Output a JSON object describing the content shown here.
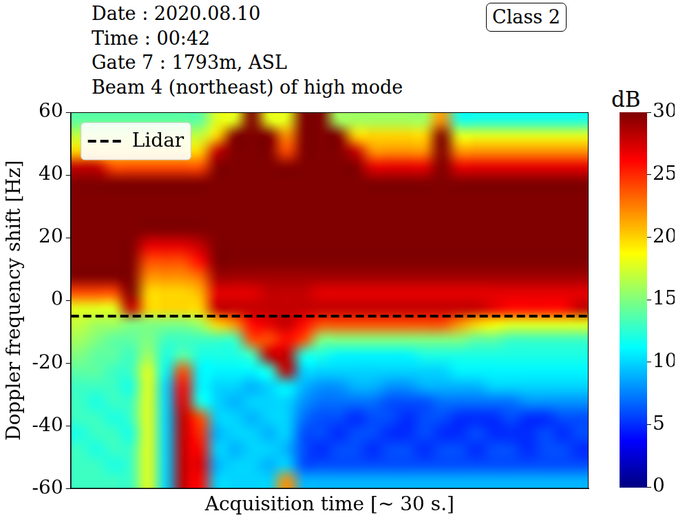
{
  "chart_data": {
    "type": "heatmap",
    "title_lines": [
      "Date : 2020.08.10",
      "Time : 00:42",
      "Gate 7 : 1793m, ASL",
      "Beam 4 (northeast) of high mode"
    ],
    "badge": "Class 2",
    "x_label": "Acquisition time [~ 30 s.]",
    "y_label": "Doppler frequency shift [Hz]",
    "xlim": [
      0,
      30
    ],
    "ylim": [
      -60,
      60
    ],
    "yticks": [
      -60,
      -40,
      -20,
      0,
      20,
      40,
      60
    ],
    "tick_labels": "y",
    "grid": false,
    "legend": "upper left",
    "x_edges": [
      0,
      1,
      2,
      3,
      4,
      5,
      6,
      7,
      8,
      9,
      10,
      11,
      12,
      13,
      14,
      15,
      16,
      17,
      18,
      19,
      20,
      21,
      22,
      23,
      24,
      25,
      26,
      27,
      28,
      29,
      30
    ],
    "y_edges": [
      -60,
      -55,
      -50,
      -45,
      -40,
      -35,
      -30,
      -25,
      -20,
      -15,
      -10,
      -5,
      0,
      5,
      10,
      15,
      20,
      25,
      30,
      35,
      40,
      45,
      50,
      55,
      60
    ],
    "cells": [
      [
        13,
        13,
        13,
        13,
        18,
        10,
        28,
        26,
        10,
        10,
        10,
        10,
        22,
        9,
        9,
        9,
        9,
        9,
        9,
        9,
        9,
        9,
        9,
        9,
        9,
        9,
        9,
        9,
        9,
        9
      ],
      [
        13,
        13,
        12,
        13,
        18,
        10,
        28,
        27,
        9,
        10,
        10,
        9,
        10,
        6,
        6,
        6,
        6,
        6,
        6,
        6,
        6,
        6,
        6,
        6,
        6,
        6,
        6,
        6,
        6,
        6
      ],
      [
        13,
        12,
        13,
        13,
        18,
        10,
        28,
        26,
        10,
        9,
        10,
        10,
        9,
        6,
        5,
        6,
        6,
        5,
        6,
        6,
        5,
        6,
        6,
        5,
        6,
        6,
        5,
        6,
        6,
        5
      ],
      [
        12,
        13,
        13,
        12,
        18,
        10,
        28,
        25,
        9,
        10,
        10,
        9,
        10,
        6,
        6,
        5,
        6,
        6,
        5,
        5,
        6,
        5,
        5,
        6,
        5,
        5,
        5,
        6,
        5,
        6
      ],
      [
        13,
        13,
        12,
        13,
        18,
        10,
        28,
        24,
        10,
        10,
        9,
        10,
        10,
        7,
        6,
        6,
        5,
        6,
        6,
        5,
        6,
        6,
        5,
        5,
        5,
        6,
        5,
        5,
        6,
        6
      ],
      [
        13,
        12,
        13,
        13,
        18,
        10,
        27,
        12,
        10,
        9,
        10,
        10,
        10,
        8,
        7,
        7,
        7,
        7,
        6,
        6,
        6,
        7,
        7,
        7,
        7,
        7,
        8,
        8,
        8,
        8
      ],
      [
        13,
        13,
        13,
        12,
        18,
        10,
        26,
        11,
        10,
        10,
        9,
        10,
        11,
        9,
        8,
        8,
        9,
        9,
        8,
        8,
        9,
        9,
        9,
        9,
        10,
        10,
        10,
        10,
        10,
        10
      ],
      [
        14,
        14,
        13,
        13,
        18,
        11,
        24,
        11,
        11,
        11,
        11,
        12,
        28,
        10,
        10,
        10,
        10,
        10,
        10,
        10,
        10,
        10,
        11,
        11,
        11,
        11,
        11,
        11,
        11,
        11
      ],
      [
        15,
        14,
        14,
        13,
        16,
        12,
        14,
        12,
        12,
        12,
        13,
        28,
        28,
        12,
        12,
        11,
        11,
        11,
        11,
        11,
        12,
        12,
        12,
        12,
        12,
        12,
        12,
        12,
        12,
        12
      ],
      [
        16,
        15,
        14,
        14,
        15,
        13,
        13,
        13,
        13,
        13,
        24,
        24,
        26,
        24,
        15,
        15,
        15,
        15,
        15,
        15,
        15,
        15,
        15,
        14,
        14,
        13,
        13,
        13,
        13,
        13
      ],
      [
        17,
        16,
        16,
        15,
        15,
        15,
        15,
        16,
        20,
        22,
        26,
        27,
        28,
        26,
        24,
        24,
        24,
        24,
        24,
        24,
        24,
        24,
        22,
        20,
        19,
        18,
        18,
        18,
        18,
        18
      ],
      [
        18,
        18,
        18,
        28,
        20,
        20,
        20,
        20,
        28,
        28,
        28,
        28,
        28,
        28,
        28,
        28,
        28,
        28,
        28,
        28,
        28,
        28,
        28,
        28,
        27,
        26,
        26,
        26,
        26,
        28
      ],
      [
        24,
        24,
        24,
        30,
        20,
        20,
        20,
        21,
        27,
        27,
        27,
        28,
        28,
        28,
        27,
        27,
        27,
        27,
        27,
        27,
        27,
        27,
        27,
        27,
        27,
        27,
        27,
        27,
        27,
        27
      ],
      [
        30,
        30,
        30,
        30,
        22,
        22,
        22,
        23,
        29,
        29,
        29,
        29,
        29,
        29,
        29,
        29,
        29,
        29,
        29,
        29,
        29,
        29,
        29,
        29,
        29,
        29,
        29,
        29,
        29,
        29
      ],
      [
        30,
        30,
        30,
        30,
        24,
        24,
        24,
        26,
        30,
        30,
        30,
        30,
        30,
        30,
        30,
        30,
        30,
        30,
        30,
        30,
        30,
        30,
        30,
        30,
        30,
        30,
        30,
        30,
        30,
        30
      ],
      [
        30,
        30,
        30,
        30,
        27,
        27,
        27,
        28,
        30,
        30,
        30,
        30,
        30,
        30,
        30,
        30,
        30,
        30,
        30,
        30,
        30,
        30,
        30,
        30,
        30,
        30,
        30,
        30,
        30,
        30
      ],
      [
        30,
        30,
        30,
        30,
        30,
        30,
        30,
        30,
        30,
        30,
        30,
        30,
        30,
        30,
        30,
        30,
        30,
        30,
        30,
        30,
        30,
        30,
        30,
        30,
        30,
        30,
        30,
        30,
        30,
        30
      ],
      [
        30,
        30,
        30,
        30,
        30,
        30,
        30,
        30,
        30,
        30,
        30,
        30,
        30,
        30,
        30,
        30,
        30,
        30,
        30,
        30,
        30,
        30,
        30,
        30,
        30,
        30,
        30,
        30,
        30,
        30
      ],
      [
        30,
        30,
        30,
        30,
        30,
        30,
        30,
        30,
        30,
        30,
        30,
        30,
        30,
        30,
        30,
        30,
        30,
        30,
        30,
        30,
        30,
        30,
        30,
        30,
        30,
        30,
        30,
        30,
        30,
        30
      ],
      [
        30,
        30,
        30,
        30,
        30,
        30,
        30,
        30,
        30,
        30,
        30,
        30,
        30,
        30,
        30,
        30,
        30,
        30,
        30,
        30,
        30,
        30,
        30,
        30,
        30,
        30,
        30,
        30,
        30,
        30
      ],
      [
        28,
        28,
        24,
        24,
        24,
        24,
        24,
        24,
        30,
        30,
        30,
        30,
        30,
        30,
        30,
        30,
        30,
        27,
        27,
        27,
        27,
        30,
        27,
        27,
        27,
        27,
        27,
        27,
        27,
        27
      ],
      [
        20,
        20,
        20,
        20,
        20,
        20,
        20,
        20,
        28,
        30,
        30,
        30,
        24,
        30,
        30,
        30,
        28,
        22,
        22,
        22,
        22,
        30,
        22,
        22,
        22,
        22,
        22,
        22,
        22,
        22
      ],
      [
        17,
        17,
        17,
        17,
        17,
        17,
        17,
        17,
        20,
        30,
        30,
        30,
        22,
        30,
        30,
        30,
        20,
        20,
        20,
        20,
        20,
        30,
        18,
        18,
        18,
        18,
        18,
        18,
        18,
        18
      ],
      [
        14,
        14,
        14,
        14,
        14,
        14,
        14,
        14,
        18,
        18,
        30,
        18,
        18,
        30,
        30,
        16,
        16,
        16,
        16,
        16,
        16,
        22,
        12,
        12,
        12,
        12,
        12,
        12,
        12,
        12
      ]
    ],
    "colorbar": {
      "label": "dB",
      "range": [
        0,
        30
      ],
      "ticks": [
        0,
        5,
        10,
        15,
        20,
        25,
        30
      ]
    },
    "series": [
      {
        "name": "Lidar",
        "type": "line",
        "color": "#000000",
        "line_style": "dashed",
        "x": [
          0,
          30
        ],
        "values": [
          -5,
          -5
        ]
      }
    ]
  }
}
